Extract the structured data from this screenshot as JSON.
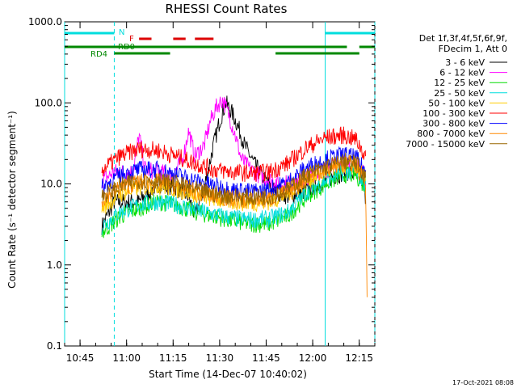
{
  "chart_data": {
    "type": "line",
    "title": "RHESSI Count Rates",
    "xlabel": "Start Time (14-Dec-07 10:40:02)",
    "ylabel": "Count Rate (s⁻¹ detector segment⁻¹)",
    "yscale": "log",
    "ylim": [
      0.1,
      1000
    ],
    "xlim_minutes": [
      0,
      100
    ],
    "x_ticks": [
      "10:45",
      "11:00",
      "11:15",
      "11:30",
      "11:45",
      "12:00",
      "12:15"
    ],
    "y_ticks": [
      "0.1",
      "1.0",
      "10.0",
      "100.0",
      "1000.0"
    ],
    "legend_header": [
      "Det 1f,3f,4f,5f,6f,9f,",
      "FDecim 1, Att 0"
    ],
    "legend_placement": "right",
    "timestamp": "17-Oct-2021 08:08",
    "series": [
      {
        "name": "3 - 6 keV",
        "color": "#000000",
        "points": [
          [
            12,
            3
          ],
          [
            16,
            6
          ],
          [
            24,
            6
          ],
          [
            30,
            10
          ],
          [
            36,
            9
          ],
          [
            40,
            7
          ],
          [
            42,
            4
          ],
          [
            45,
            9
          ],
          [
            48,
            30
          ],
          [
            50,
            60
          ],
          [
            52,
            100
          ],
          [
            54,
            75
          ],
          [
            56,
            50
          ],
          [
            58,
            30
          ],
          [
            61,
            18
          ],
          [
            64,
            12
          ],
          [
            68,
            8
          ],
          [
            72,
            7
          ],
          [
            77,
            8
          ],
          [
            82,
            10
          ],
          [
            88,
            13
          ],
          [
            92,
            14
          ],
          [
            96,
            11
          ],
          [
            97,
            7
          ]
        ]
      },
      {
        "name": "6 - 12 keV",
        "color": "#ff00ff",
        "points": [
          [
            12,
            11
          ],
          [
            16,
            14
          ],
          [
            22,
            14
          ],
          [
            24,
            40
          ],
          [
            26,
            15
          ],
          [
            30,
            14
          ],
          [
            35,
            13
          ],
          [
            38,
            20
          ],
          [
            40,
            45
          ],
          [
            42,
            22
          ],
          [
            45,
            30
          ],
          [
            47,
            60
          ],
          [
            49,
            90
          ],
          [
            51,
            110
          ],
          [
            53,
            70
          ],
          [
            55,
            40
          ],
          [
            57,
            20
          ],
          [
            60,
            15
          ],
          [
            64,
            12
          ],
          [
            70,
            10
          ],
          [
            76,
            11
          ],
          [
            82,
            14
          ],
          [
            88,
            17
          ],
          [
            92,
            18
          ],
          [
            96,
            15
          ],
          [
            97,
            10
          ]
        ]
      },
      {
        "name": "12 - 25 keV",
        "color": "#00dd00",
        "points": [
          [
            12,
            2.5
          ],
          [
            18,
            4
          ],
          [
            24,
            5
          ],
          [
            30,
            6
          ],
          [
            36,
            5.5
          ],
          [
            42,
            4.5
          ],
          [
            48,
            4
          ],
          [
            54,
            3.5
          ],
          [
            60,
            3.2
          ],
          [
            66,
            3.2
          ],
          [
            72,
            4
          ],
          [
            78,
            7
          ],
          [
            84,
            10
          ],
          [
            90,
            13
          ],
          [
            94,
            13
          ],
          [
            97,
            9
          ]
        ]
      },
      {
        "name": "25 - 50 keV",
        "color": "#00dddd",
        "points": [
          [
            12,
            3
          ],
          [
            18,
            4.5
          ],
          [
            24,
            5.5
          ],
          [
            30,
            6
          ],
          [
            36,
            5.5
          ],
          [
            42,
            4.8
          ],
          [
            48,
            4.2
          ],
          [
            54,
            3.8
          ],
          [
            60,
            3.6
          ],
          [
            66,
            3.7
          ],
          [
            72,
            4.5
          ],
          [
            78,
            8
          ],
          [
            84,
            11
          ],
          [
            90,
            14
          ],
          [
            94,
            14
          ],
          [
            97,
            10
          ]
        ]
      },
      {
        "name": "50 - 100 keV",
        "color": "#ffcc00",
        "points": [
          [
            12,
            5
          ],
          [
            18,
            7.5
          ],
          [
            24,
            9
          ],
          [
            30,
            9.5
          ],
          [
            36,
            8.5
          ],
          [
            42,
            7.5
          ],
          [
            48,
            6.5
          ],
          [
            54,
            6
          ],
          [
            60,
            5.8
          ],
          [
            66,
            6
          ],
          [
            72,
            7.5
          ],
          [
            78,
            11
          ],
          [
            84,
            14
          ],
          [
            90,
            17
          ],
          [
            94,
            16
          ],
          [
            97,
            11
          ]
        ]
      },
      {
        "name": "100 - 300 keV",
        "color": "#ff0000",
        "points": [
          [
            12,
            15
          ],
          [
            18,
            22
          ],
          [
            24,
            27
          ],
          [
            30,
            26
          ],
          [
            36,
            22
          ],
          [
            42,
            18
          ],
          [
            48,
            15
          ],
          [
            54,
            14
          ],
          [
            60,
            13.5
          ],
          [
            66,
            14
          ],
          [
            72,
            18
          ],
          [
            78,
            28
          ],
          [
            84,
            37
          ],
          [
            90,
            40
          ],
          [
            94,
            35
          ],
          [
            97,
            22
          ]
        ]
      },
      {
        "name": "300 - 800 keV",
        "color": "#0000ff",
        "points": [
          [
            12,
            9
          ],
          [
            18,
            13
          ],
          [
            24,
            15
          ],
          [
            30,
            15
          ],
          [
            36,
            13
          ],
          [
            42,
            11
          ],
          [
            48,
            9.5
          ],
          [
            54,
            8.5
          ],
          [
            60,
            8
          ],
          [
            66,
            8.5
          ],
          [
            72,
            10.5
          ],
          [
            78,
            16
          ],
          [
            84,
            20
          ],
          [
            90,
            23
          ],
          [
            94,
            21
          ],
          [
            97,
            14
          ]
        ]
      },
      {
        "name": "800 - 7000 keV",
        "color": "#ff8800",
        "points": [
          [
            12,
            6.5
          ],
          [
            18,
            9
          ],
          [
            24,
            10.5
          ],
          [
            30,
            10.5
          ],
          [
            36,
            9.5
          ],
          [
            42,
            8
          ],
          [
            48,
            7
          ],
          [
            54,
            6.5
          ],
          [
            60,
            6.2
          ],
          [
            66,
            6.5
          ],
          [
            72,
            8
          ],
          [
            78,
            12
          ],
          [
            84,
            15
          ],
          [
            90,
            18
          ],
          [
            94,
            17
          ],
          [
            97,
            12
          ],
          [
            97.5,
            0.4
          ]
        ]
      },
      {
        "name": "7000 - 15000 keV",
        "color": "#996600",
        "points": [
          [
            12,
            7
          ],
          [
            18,
            9.5
          ],
          [
            24,
            11
          ],
          [
            30,
            11
          ],
          [
            36,
            10
          ],
          [
            42,
            8.5
          ],
          [
            48,
            7.5
          ],
          [
            54,
            7
          ],
          [
            60,
            6.8
          ],
          [
            66,
            7
          ],
          [
            72,
            8.5
          ],
          [
            78,
            13
          ],
          [
            84,
            16
          ],
          [
            90,
            19
          ],
          [
            94,
            18
          ],
          [
            97,
            12
          ]
        ]
      }
    ],
    "state_bars": [
      {
        "label": "N",
        "color": "#00dddd",
        "level": 1,
        "spans": [
          [
            0,
            16
          ],
          [
            84,
            100
          ]
        ]
      },
      {
        "label": "F",
        "color": "#dd0000",
        "level": 2,
        "spans": [
          [
            24,
            28
          ],
          [
            35,
            39
          ],
          [
            42,
            48
          ]
        ]
      },
      {
        "label": "RD0",
        "color": "#008800",
        "level": 3,
        "spans": [
          [
            0,
            91
          ],
          [
            95,
            100
          ]
        ]
      },
      {
        "label": "RD4",
        "color": "#008800",
        "level": 4,
        "spans": [
          [
            16,
            34
          ],
          [
            68,
            95
          ]
        ]
      }
    ],
    "vertical_lines": [
      {
        "x": 0,
        "style": "solid",
        "color": "#00dddd"
      },
      {
        "x": 16,
        "style": "dashed",
        "color": "#00dddd"
      },
      {
        "x": 84,
        "style": "solid",
        "color": "#00dddd"
      },
      {
        "x": 100,
        "style": "dashed",
        "color": "#00dddd"
      }
    ]
  }
}
